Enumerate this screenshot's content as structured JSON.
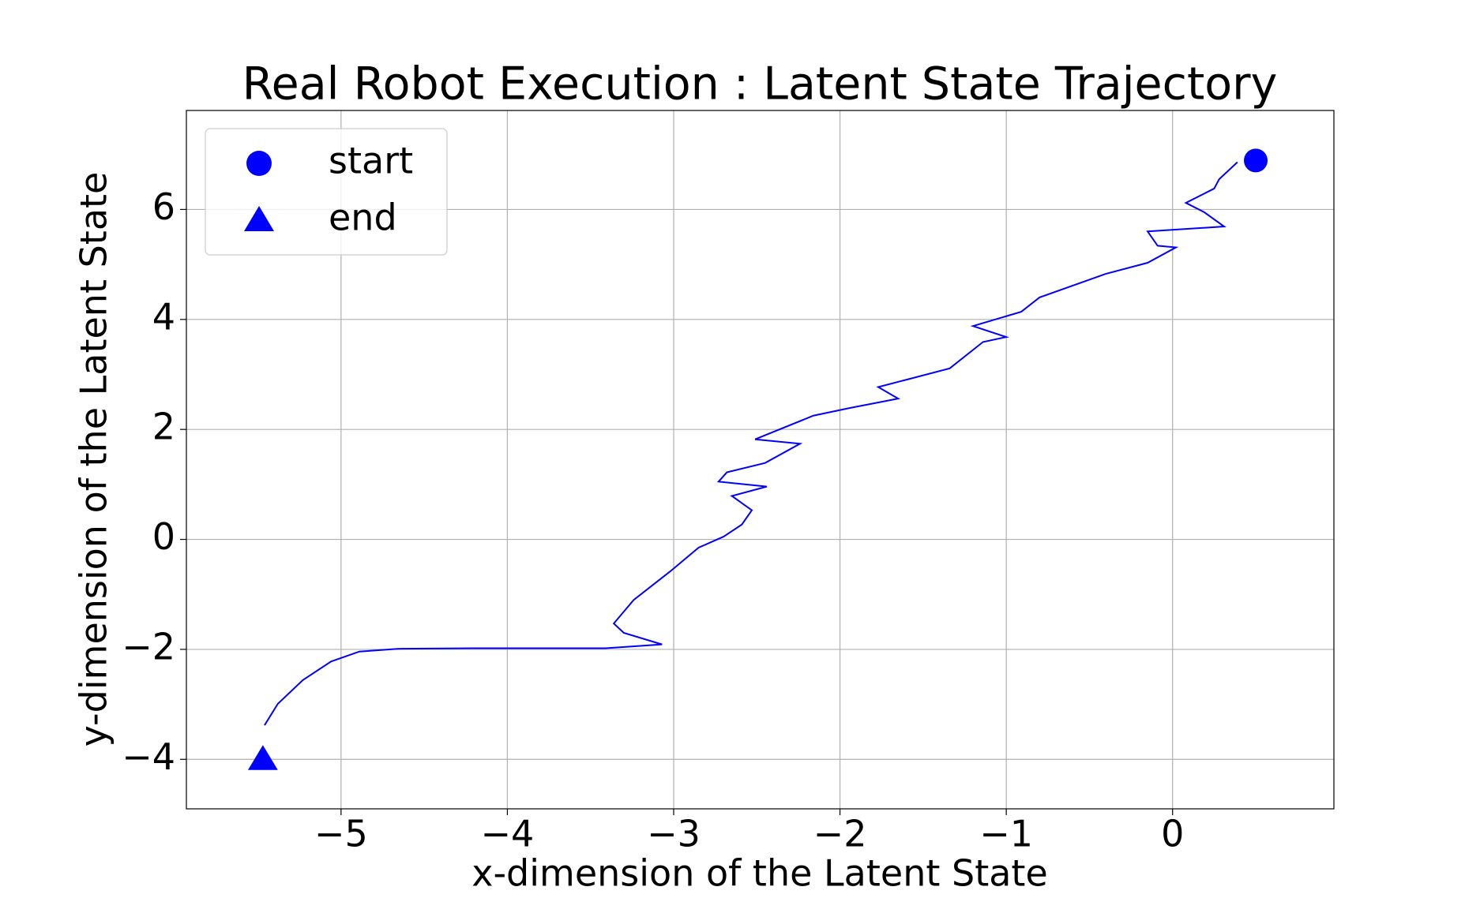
{
  "chart_data": {
    "type": "line",
    "title": "Real Robot Execution : Latent State Trajectory",
    "xlabel": "x-dimension of the Latent State",
    "ylabel": "y-dimension of the Latent State",
    "color": "#0000ff",
    "grid": true,
    "legend": "upper left",
    "xlim": [
      -5.93,
      0.97
    ],
    "ylim": [
      -4.9,
      7.8
    ],
    "xticks": [
      {
        "value": -5,
        "label": "−5"
      },
      {
        "value": -4,
        "label": "−4"
      },
      {
        "value": -3,
        "label": "−3"
      },
      {
        "value": -2,
        "label": "−2"
      },
      {
        "value": -1,
        "label": "−1"
      },
      0
    ],
    "yticks": [
      {
        "value": -4,
        "label": "−4"
      },
      {
        "value": -2,
        "label": "−2"
      },
      0,
      2,
      4,
      6
    ],
    "x": [
      0.39,
      0.28,
      0.25,
      0.08,
      0.19,
      0.31,
      -0.15,
      -0.09,
      0.02,
      -0.15,
      -0.4,
      -0.8,
      -0.91,
      -1.2,
      -1.0,
      -1.14,
      -1.34,
      -1.77,
      -1.65,
      -1.94,
      -2.16,
      -2.51,
      -2.24,
      -2.45,
      -2.68,
      -2.73,
      -2.44,
      -2.65,
      -2.53,
      -2.59,
      -2.7,
      -2.85,
      -3.02,
      -3.24,
      -3.36,
      -3.3,
      -3.07,
      -3.41,
      -4.21,
      -4.66,
      -4.89,
      -5.06,
      -5.23,
      -5.38,
      -5.46
    ],
    "y": [
      6.86,
      6.55,
      6.38,
      6.12,
      5.95,
      5.69,
      5.6,
      5.34,
      5.31,
      5.03,
      4.83,
      4.4,
      4.14,
      3.88,
      3.68,
      3.59,
      3.11,
      2.77,
      2.56,
      2.39,
      2.25,
      1.82,
      1.74,
      1.39,
      1.22,
      1.05,
      0.96,
      0.79,
      0.53,
      0.27,
      0.05,
      -0.15,
      -0.58,
      -1.1,
      -1.53,
      -1.7,
      -1.91,
      -1.98,
      -1.98,
      -1.99,
      -2.04,
      -2.22,
      -2.56,
      -2.99,
      -3.38
    ],
    "markers": [
      {
        "name": "start",
        "shape": "circle",
        "x": 0.5,
        "y": 6.89
      },
      {
        "name": "end",
        "shape": "triangle",
        "x": -5.47,
        "y": -4.0
      }
    ]
  }
}
